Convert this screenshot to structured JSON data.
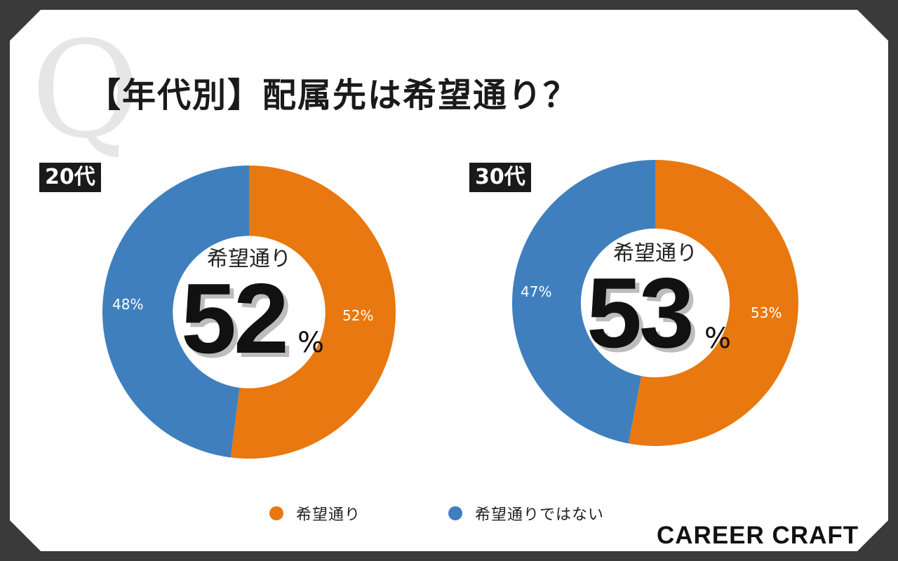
{
  "title": "【年代別】配属先は希望通り？",
  "q_mark": "Q",
  "colors": {
    "yes": "#E8780F",
    "no": "#3F7FBE",
    "background": "#3a3a3a"
  },
  "center_caption": "希望通り",
  "percent_sign": "%",
  "brand": "CAREER CRAFT",
  "chart_data": [
    {
      "type": "pie",
      "panel_label": "20代",
      "categories": [
        "希望通り",
        "希望通りではない"
      ],
      "values": [
        52,
        48
      ],
      "slice_labels": [
        "52%",
        "48%"
      ],
      "highlight": "52"
    },
    {
      "type": "pie",
      "panel_label": "30代",
      "categories": [
        "希望通り",
        "希望通りではない"
      ],
      "values": [
        53,
        47
      ],
      "slice_labels": [
        "53%",
        "47%"
      ],
      "highlight": "53"
    }
  ],
  "legend": [
    {
      "label": "希望通り",
      "color": "#E8780F"
    },
    {
      "label": "希望通りではない",
      "color": "#3F7FBE"
    }
  ]
}
